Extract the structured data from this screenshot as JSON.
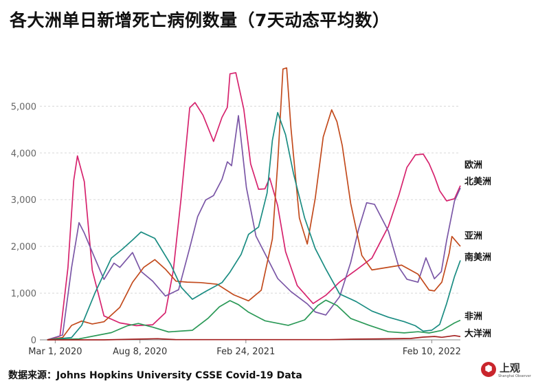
{
  "title": "各大洲单日新增死亡病例数量（7天动态平均数）",
  "source": "数据来源：Johns Hopkins University CSSE Covid-19 Data",
  "logo": {
    "text": "上观",
    "subtext": "Shanghai Observer",
    "icon": "hexagon-logo-icon",
    "color": "#c9252c"
  },
  "chart_data": {
    "type": "line",
    "title": "各大洲单日新增死亡病例数量（7天动态平均数）",
    "y_ticks": [
      0,
      1000,
      2000,
      3000,
      4000,
      5000
    ],
    "y_tick_labels": [
      "0",
      "1,000",
      "2,000",
      "3,000",
      "4,000",
      "5,000"
    ],
    "ylim": [
      0,
      5800
    ],
    "xlim": [
      "2020-02-01",
      "2022-04-05"
    ],
    "x_ticks": [
      "2020-03-01",
      "2020-08-08",
      "2021-02-24",
      "2022-02-10"
    ],
    "x_tick_labels": [
      "Mar 1, 2020",
      "Aug 8, 2020",
      "Feb 24, 2021",
      "Feb 10, 2022"
    ],
    "grid": "horizontal-dashed",
    "legend": "inline-right",
    "series": [
      {
        "name": "欧洲",
        "color": "#d6226d",
        "x": [
          "2020-02-15",
          "2020-03-10",
          "2020-03-25",
          "2020-04-05",
          "2020-04-12",
          "2020-04-25",
          "2020-05-10",
          "2020-06-01",
          "2020-07-01",
          "2020-08-01",
          "2020-09-01",
          "2020-09-25",
          "2020-10-10",
          "2020-10-25",
          "2020-11-10",
          "2020-11-20",
          "2020-12-05",
          "2020-12-25",
          "2021-01-10",
          "2021-01-20",
          "2021-01-25",
          "2021-02-05",
          "2021-02-20",
          "2021-03-05",
          "2021-03-20",
          "2021-04-01",
          "2021-04-10",
          "2021-04-25",
          "2021-05-10",
          "2021-06-01",
          "2021-07-01",
          "2021-07-25",
          "2021-08-20",
          "2021-09-20",
          "2021-10-20",
          "2021-11-20",
          "2021-12-10",
          "2021-12-25",
          "2022-01-10",
          "2022-01-25",
          "2022-02-05",
          "2022-02-15",
          "2022-02-25",
          "2022-03-10",
          "2022-03-25",
          "2022-04-05"
        ],
        "y": [
          0,
          80,
          1500,
          3400,
          4050,
          3500,
          1500,
          500,
          350,
          300,
          330,
          600,
          1500,
          3000,
          4800,
          5000,
          4900,
          4400,
          4850,
          4900,
          5500,
          5600,
          5000,
          3900,
          3300,
          3200,
          3350,
          2800,
          1900,
          1200,
          800,
          950,
          1200,
          1450,
          1750,
          2500,
          3200,
          3700,
          3850,
          3850,
          3750,
          3600,
          3300,
          3000,
          2950,
          3300
        ]
      },
      {
        "name": "北美洲",
        "color": "#7a56a6",
        "x": [
          "2020-02-15",
          "2020-03-15",
          "2020-04-01",
          "2020-04-15",
          "2020-04-25",
          "2020-05-15",
          "2020-06-01",
          "2020-06-20",
          "2020-07-01",
          "2020-07-25",
          "2020-08-10",
          "2020-09-01",
          "2020-09-25",
          "2020-10-20",
          "2020-11-10",
          "2020-11-25",
          "2020-12-10",
          "2020-12-25",
          "2021-01-10",
          "2021-01-20",
          "2021-01-28",
          "2021-02-10",
          "2021-02-25",
          "2021-03-15",
          "2021-04-05",
          "2021-04-25",
          "2021-05-20",
          "2021-06-20",
          "2021-07-05",
          "2021-07-25",
          "2021-08-20",
          "2021-09-10",
          "2021-09-25",
          "2021-10-10",
          "2021-10-25",
          "2021-11-20",
          "2021-12-10",
          "2021-12-25",
          "2022-01-15",
          "2022-01-30",
          "2022-02-15",
          "2022-02-28",
          "2022-03-10",
          "2022-03-25",
          "2022-04-05"
        ],
        "y": [
          0,
          100,
          1500,
          2500,
          2350,
          1800,
          1300,
          1600,
          1500,
          1850,
          1500,
          1300,
          950,
          1050,
          1900,
          2600,
          3050,
          3200,
          3500,
          3750,
          3600,
          4700,
          3300,
          2300,
          1800,
          1300,
          1000,
          750,
          600,
          550,
          950,
          1650,
          2300,
          2850,
          2900,
          2400,
          1600,
          1300,
          1200,
          1700,
          1300,
          1500,
          2200,
          3000,
          3250
        ]
      },
      {
        "name": "亚洲",
        "color": "#c24a1c",
        "x": [
          "2020-02-15",
          "2020-03-15",
          "2020-04-01",
          "2020-04-20",
          "2020-05-10",
          "2020-06-01",
          "2020-07-01",
          "2020-07-25",
          "2020-08-15",
          "2020-09-05",
          "2020-09-25",
          "2020-10-15",
          "2020-11-05",
          "2020-12-01",
          "2021-01-01",
          "2021-02-01",
          "2021-03-01",
          "2021-03-25",
          "2021-04-15",
          "2021-04-25",
          "2021-05-05",
          "2021-05-12",
          "2021-05-20",
          "2021-06-05",
          "2021-06-20",
          "2021-07-05",
          "2021-07-20",
          "2021-08-05",
          "2021-08-15",
          "2021-08-25",
          "2021-09-10",
          "2021-10-01",
          "2021-10-20",
          "2021-11-15",
          "2021-12-15",
          "2022-01-15",
          "2022-02-05",
          "2022-02-15",
          "2022-03-01",
          "2022-03-15",
          "2022-03-20",
          "2022-04-05"
        ],
        "y": [
          0,
          50,
          300,
          400,
          350,
          400,
          700,
          1200,
          1500,
          1700,
          1550,
          1300,
          1250,
          1200,
          1150,
          950,
          850,
          1100,
          2200,
          3700,
          5600,
          5700,
          4600,
          2700,
          2100,
          3000,
          4200,
          4800,
          4700,
          4300,
          3000,
          1800,
          1450,
          1500,
          1600,
          1450,
          1100,
          1050,
          1200,
          1800,
          2200,
          2000
        ]
      },
      {
        "name": "南美洲",
        "color": "#1a8c82",
        "x": [
          "2020-02-15",
          "2020-04-01",
          "2020-04-20",
          "2020-05-15",
          "2020-06-15",
          "2020-07-05",
          "2020-07-25",
          "2020-08-10",
          "2020-09-05",
          "2020-10-05",
          "2020-10-25",
          "2020-11-15",
          "2020-12-10",
          "2021-01-10",
          "2021-01-25",
          "2021-02-15",
          "2021-03-01",
          "2021-03-20",
          "2021-04-05",
          "2021-04-15",
          "2021-04-25",
          "2021-05-10",
          "2021-05-25",
          "2021-06-15",
          "2021-07-05",
          "2021-07-25",
          "2021-08-20",
          "2021-09-20",
          "2021-10-20",
          "2021-11-20",
          "2021-12-20",
          "2022-01-10",
          "2022-01-25",
          "2022-02-10",
          "2022-02-25",
          "2022-03-10",
          "2022-03-25",
          "2022-04-05"
        ],
        "y": [
          0,
          50,
          300,
          1000,
          1800,
          2000,
          2150,
          2250,
          2100,
          1600,
          1150,
          900,
          1050,
          1200,
          1400,
          1800,
          2300,
          2500,
          3200,
          4200,
          4700,
          4300,
          3600,
          2700,
          2000,
          1500,
          950,
          800,
          620,
          500,
          400,
          300,
          180,
          200,
          330,
          800,
          1400,
          1700
        ]
      },
      {
        "name": "非洲",
        "color": "#2b9957",
        "x": [
          "2020-02-15",
          "2020-04-15",
          "2020-06-15",
          "2020-07-15",
          "2020-08-05",
          "2020-09-01",
          "2020-10-01",
          "2020-11-15",
          "2020-12-15",
          "2021-01-05",
          "2021-01-25",
          "2021-02-10",
          "2021-03-01",
          "2021-04-01",
          "2021-05-15",
          "2021-06-15",
          "2021-07-10",
          "2021-07-25",
          "2021-08-15",
          "2021-09-10",
          "2021-10-15",
          "2021-11-20",
          "2021-12-20",
          "2022-01-15",
          "2022-02-05",
          "2022-03-01",
          "2022-03-25",
          "2022-04-05"
        ],
        "y": [
          0,
          20,
          150,
          300,
          360,
          280,
          170,
          200,
          450,
          700,
          860,
          780,
          600,
          400,
          300,
          420,
          750,
          880,
          750,
          450,
          300,
          170,
          150,
          180,
          150,
          200,
          350,
          420
        ]
      },
      {
        "name": "大洋洲",
        "color": "#a31e1e",
        "x": [
          "2020-02-15",
          "2020-06-01",
          "2020-08-01",
          "2020-09-10",
          "2020-10-15",
          "2021-03-01",
          "2021-08-01",
          "2021-09-15",
          "2021-11-01",
          "2022-01-01",
          "2022-01-25",
          "2022-02-15",
          "2022-03-01",
          "2022-03-25",
          "2022-04-05"
        ],
        "y": [
          0,
          0,
          15,
          25,
          5,
          5,
          5,
          15,
          20,
          30,
          60,
          75,
          55,
          90,
          70
        ]
      }
    ]
  }
}
